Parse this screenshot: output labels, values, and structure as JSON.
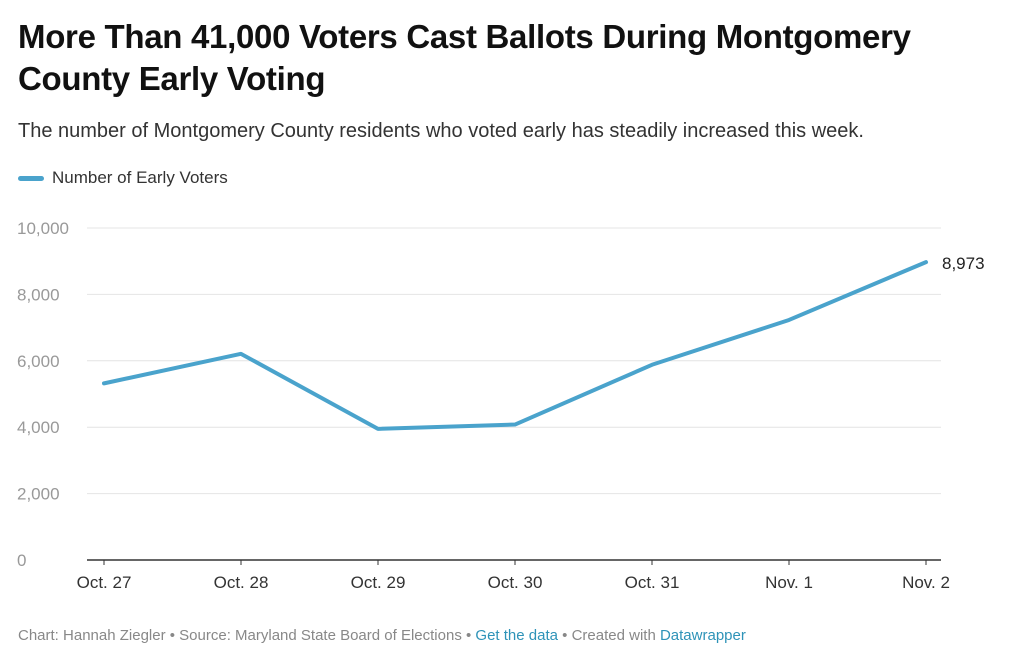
{
  "title": "More Than 41,000 Voters Cast Ballots During Montgomery County Early Voting",
  "subtitle": "The number of Montgomery County residents who voted early has steadily increased this week.",
  "colors": {
    "series": "#4aa3cc",
    "grid": "#e4e4e4",
    "axis": "#333333",
    "tick": "#999999",
    "link": "#2e93b8"
  },
  "chart_data": {
    "type": "line",
    "title": "More Than 41,000 Voters Cast Ballots During Montgomery County Early Voting",
    "xlabel": "",
    "ylabel": "",
    "categories": [
      "Oct. 27",
      "Oct. 28",
      "Oct. 29",
      "Oct. 30",
      "Oct. 31",
      "Nov. 1",
      "Nov. 2"
    ],
    "series": [
      {
        "name": "Number of Early Voters",
        "values": [
          5320,
          6210,
          3950,
          4080,
          5880,
          7230,
          8973
        ]
      }
    ],
    "ylim": [
      0,
      10000
    ],
    "yticks": [
      0,
      2000,
      4000,
      6000,
      8000,
      10000
    ],
    "ytick_labels": [
      "0",
      "2,000",
      "4,000",
      "6,000",
      "8,000",
      "10,000"
    ],
    "end_label": "8,973",
    "grid": true,
    "legend_position": "top-left"
  },
  "footer": {
    "chart_credit": "Chart: Hannah Ziegler",
    "separator": " • ",
    "source": "Source: Maryland State Board of Elections",
    "get_data_link": "Get the data",
    "created_with": "Created with",
    "datawrapper_link": "Datawrapper"
  }
}
